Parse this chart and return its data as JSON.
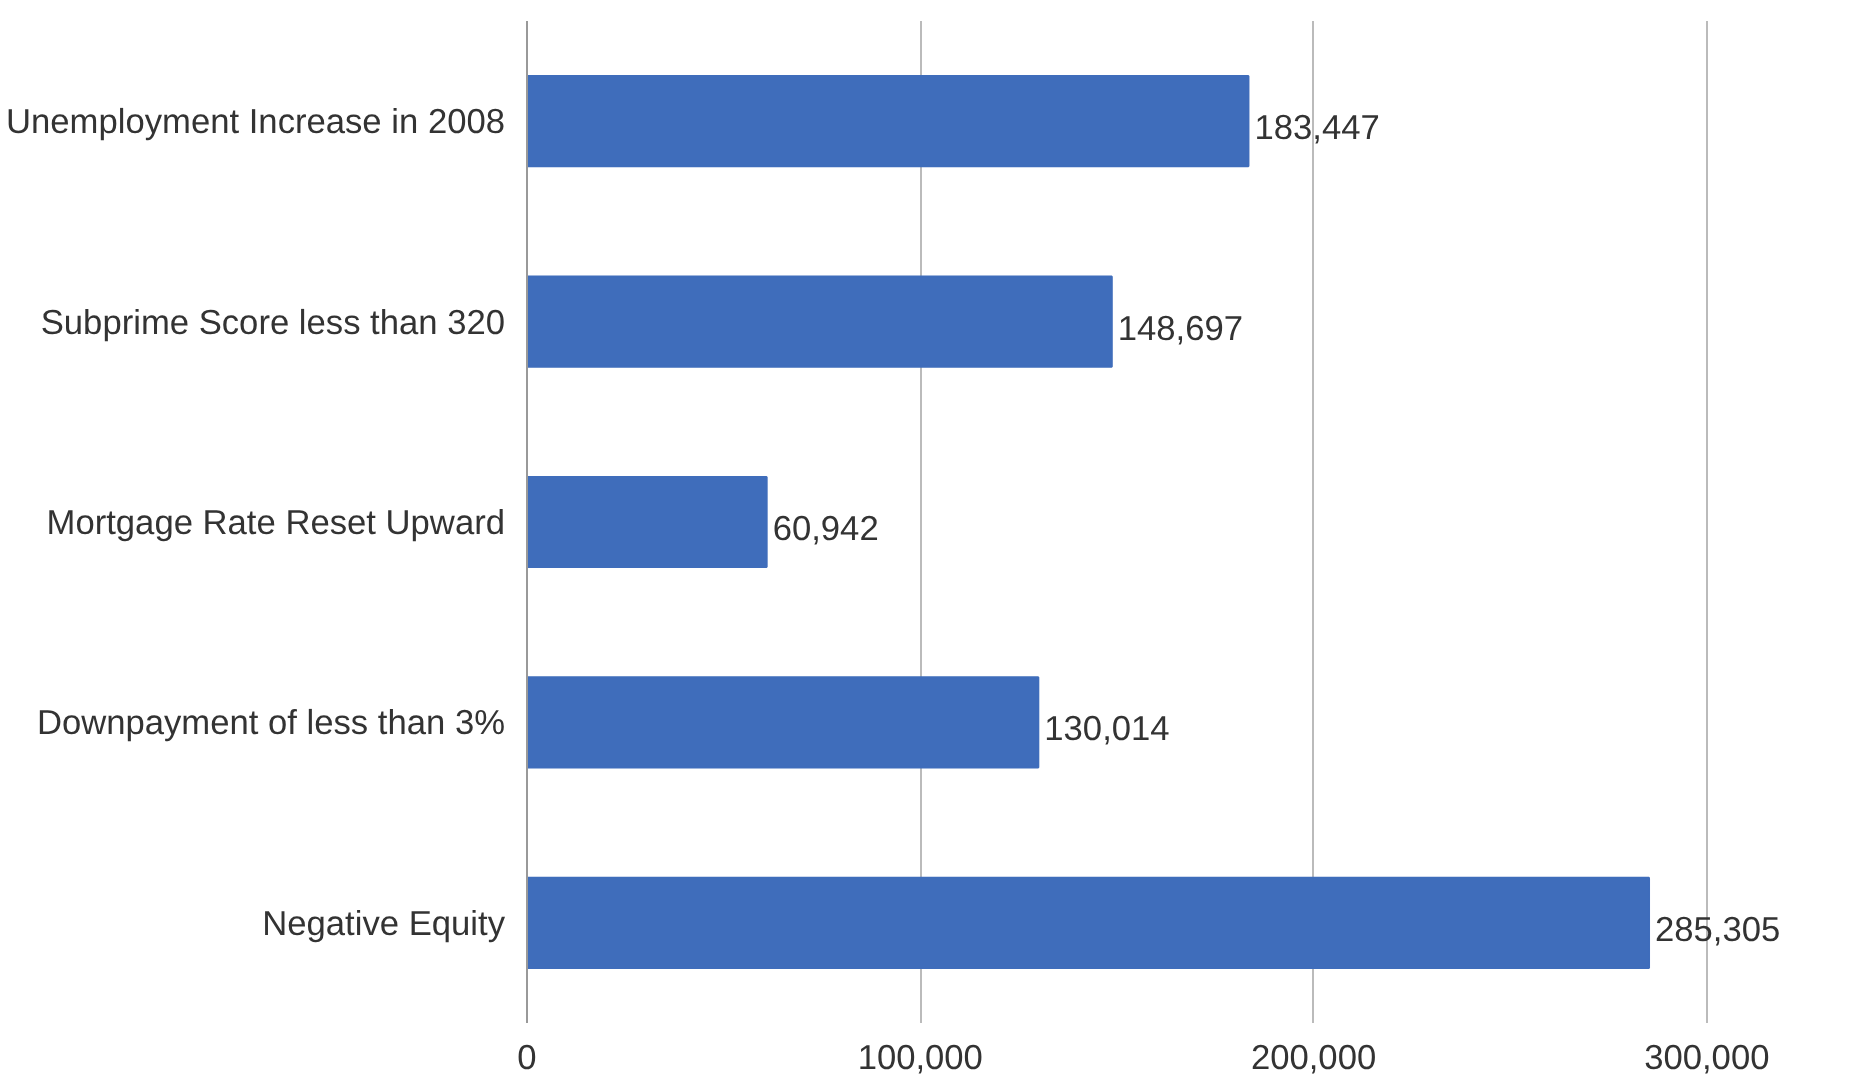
{
  "chart_data": {
    "type": "bar",
    "orientation": "horizontal",
    "categories": [
      "Unemployment Increase in 2008",
      "Subprime Score less than 320",
      "Mortgage Rate Reset Upward",
      "Downpayment of less than 3%",
      "Negative Equity"
    ],
    "values": [
      183447,
      148697,
      60942,
      130014,
      285305
    ],
    "value_labels": [
      "183,447",
      "148,697",
      "60,942",
      "130,014",
      "285,305"
    ],
    "color": "#3f6dbb",
    "xlim": [
      0,
      300000
    ],
    "xticks": [
      {
        "value": 0,
        "label": "0"
      },
      {
        "value": 100000,
        "label": "100,000"
      },
      {
        "value": 200000,
        "label": "200,000"
      },
      {
        "value": 300000,
        "label": "300,000"
      }
    ],
    "grid": "x"
  }
}
